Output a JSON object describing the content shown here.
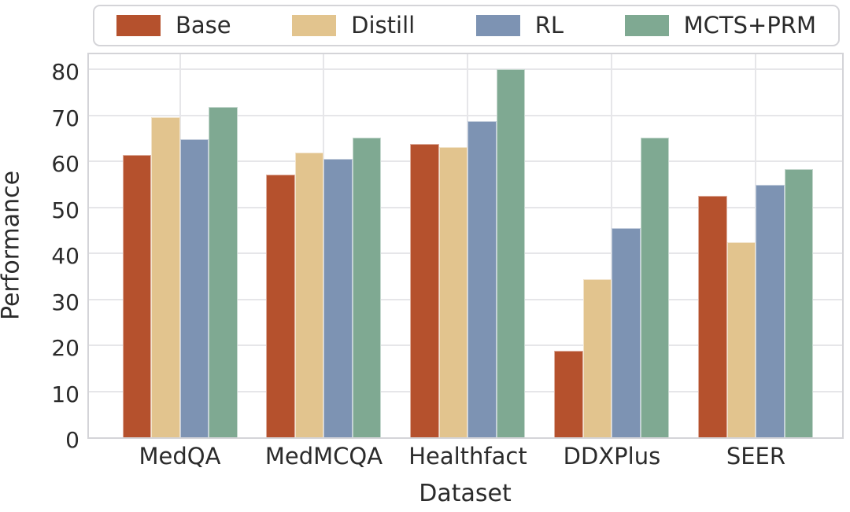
{
  "chart_data": {
    "type": "bar",
    "title": "",
    "xlabel": "Dataset",
    "ylabel": "Performance",
    "categories": [
      "MedQA",
      "MedMCQA",
      "Healthfact",
      "DDXPlus",
      "SEER"
    ],
    "series": [
      {
        "name": "Base",
        "color": "#b5512d",
        "values": [
          61.4,
          57.2,
          63.8,
          18.9,
          52.5
        ]
      },
      {
        "name": "Distill",
        "color": "#e2c48e",
        "values": [
          69.7,
          62.0,
          63.2,
          34.4,
          42.4
        ]
      },
      {
        "name": "RL",
        "color": "#7d93b3",
        "values": [
          64.8,
          60.6,
          68.8,
          45.5,
          55.0
        ]
      },
      {
        "name": "MCTS+PRM",
        "color": "#7fa992",
        "values": [
          71.8,
          65.1,
          80.0,
          65.1,
          58.3
        ]
      }
    ],
    "ylim": [
      0,
      84
    ],
    "yticks": [
      0,
      10,
      20,
      30,
      40,
      50,
      60,
      70,
      80
    ],
    "grid": true,
    "legend_position": "top",
    "colors": {
      "grid": "#e6e6e9",
      "spine": "#d4d4d8",
      "text": "#2b2b2b",
      "background": "#ffffff"
    }
  }
}
